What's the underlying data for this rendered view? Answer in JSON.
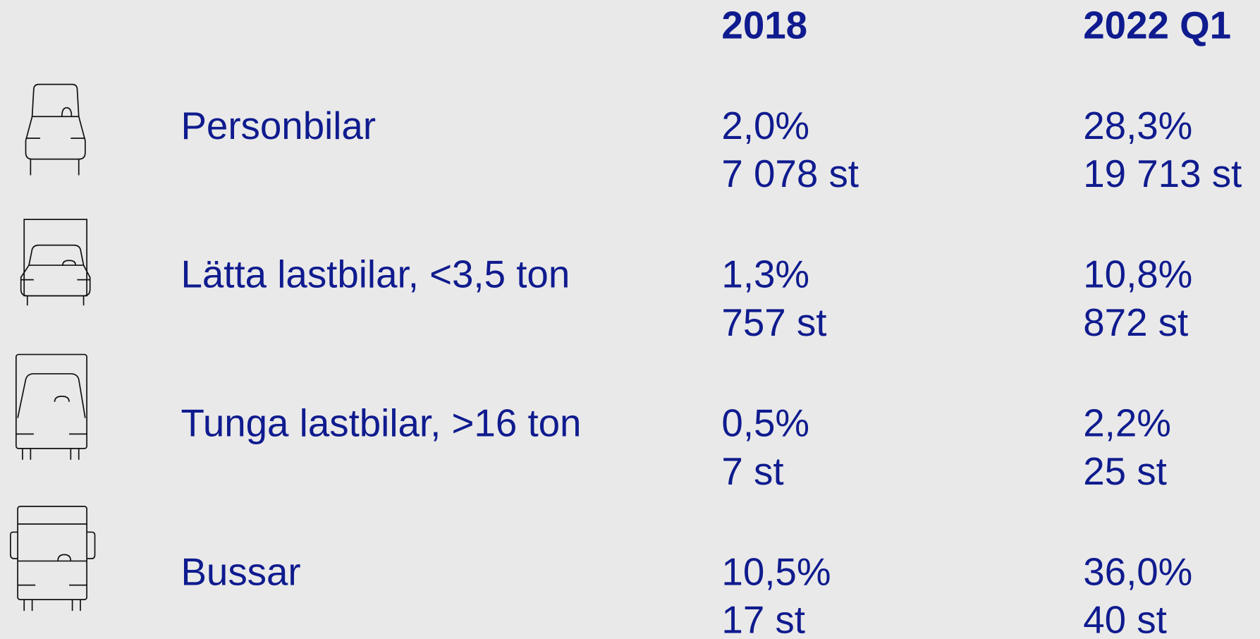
{
  "table": {
    "columns": [
      "2018",
      "2022 Q1"
    ],
    "rows": [
      {
        "label": "Personbilar",
        "cells": [
          [
            "2,0%",
            "7 078 st"
          ],
          [
            "28,3%",
            "19 713 st"
          ]
        ]
      },
      {
        "label": "Lätta lastbilar, <3,5 ton",
        "cells": [
          [
            "1,3%",
            "757 st"
          ],
          [
            "10,8%",
            "872 st"
          ]
        ]
      },
      {
        "label": "Tunga lastbilar, >16 ton",
        "cells": [
          [
            "0,5%",
            "7 st"
          ],
          [
            "2,2%",
            "25 st"
          ]
        ]
      },
      {
        "label": "Bussar",
        "cells": [
          [
            "10,5%",
            "17 st"
          ],
          [
            "36,0%",
            "40 st"
          ]
        ]
      }
    ]
  }
}
